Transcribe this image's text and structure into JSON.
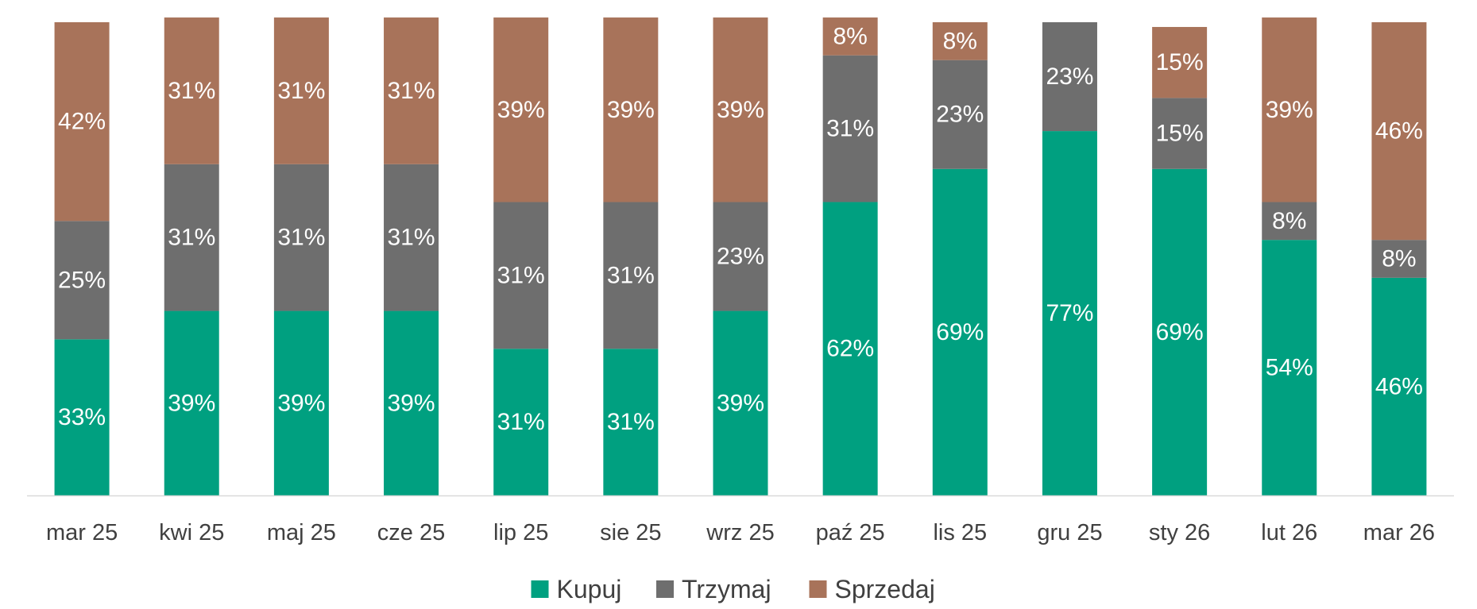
{
  "chart_data": {
    "type": "bar",
    "stacked": true,
    "normalized": true,
    "categories": [
      "mar 25",
      "kwi 25",
      "maj 25",
      "cze 25",
      "lip 25",
      "sie 25",
      "wrz 25",
      "paź 25",
      "lis 25",
      "gru 25",
      "sty 26",
      "lut 26",
      "mar 26"
    ],
    "series": [
      {
        "name": "Kupuj",
        "color": "#00A080",
        "values": [
          33,
          39,
          39,
          39,
          31,
          31,
          39,
          62,
          69,
          77,
          69,
          54,
          46
        ]
      },
      {
        "name": "Trzymaj",
        "color": "#6E6E6E",
        "values": [
          25,
          31,
          31,
          31,
          31,
          31,
          23,
          31,
          23,
          23,
          15,
          8,
          8
        ]
      },
      {
        "name": "Sprzedaj",
        "color": "#A8735A",
        "values": [
          42,
          31,
          31,
          31,
          39,
          39,
          39,
          8,
          8,
          0,
          15,
          39,
          46
        ]
      }
    ],
    "value_suffix": "%",
    "ylim": [
      0,
      100
    ],
    "title": "",
    "xlabel": "",
    "ylabel": "",
    "grid": false,
    "legend_position": "bottom-center",
    "axis_color": "#D9D9D9"
  }
}
